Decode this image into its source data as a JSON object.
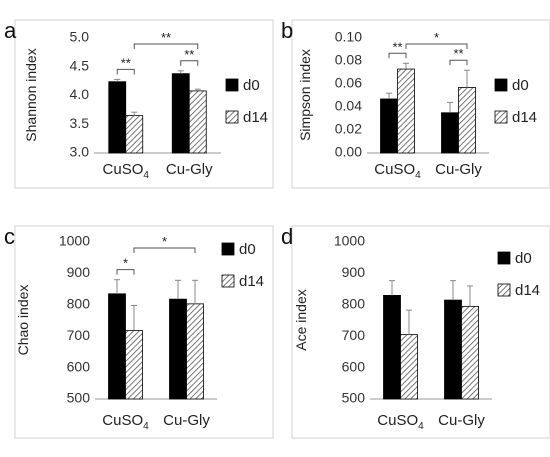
{
  "chart_data": [
    {
      "panel_label": "a",
      "type": "bar",
      "ylabel": "Shannon index",
      "ylim": [
        3.0,
        5.0
      ],
      "yticks": [
        "3.0",
        "3.5",
        "4.0",
        "4.5",
        "5.0"
      ],
      "categories": [
        {
          "label": "CuSO",
          "sub": "4"
        },
        {
          "label": "Cu-Gly",
          "sub": ""
        }
      ],
      "series": [
        {
          "name": "d0",
          "values": [
            4.24,
            4.38
          ],
          "errors": [
            0.04,
            0.05
          ]
        },
        {
          "name": "d14",
          "values": [
            3.65,
            4.08
          ],
          "errors": [
            0.06,
            0.03
          ]
        }
      ],
      "significance": [
        {
          "from": [
            0,
            0
          ],
          "to": [
            0,
            1
          ],
          "label": "**"
        },
        {
          "from": [
            1,
            0
          ],
          "to": [
            1,
            1
          ],
          "label": "**"
        },
        {
          "from": [
            0,
            1
          ],
          "to": [
            1,
            1
          ],
          "label": "**"
        }
      ]
    },
    {
      "panel_label": "b",
      "type": "bar",
      "ylabel": "Simpson index",
      "ylim": [
        0.0,
        0.1
      ],
      "yticks": [
        "0.00",
        "0.02",
        "0.04",
        "0.06",
        "0.08",
        "0.10"
      ],
      "categories": [
        {
          "label": "CuSO",
          "sub": "4"
        },
        {
          "label": "Cu-Gly",
          "sub": ""
        }
      ],
      "series": [
        {
          "name": "d0",
          "values": [
            0.047,
            0.035
          ],
          "errors": [
            0.005,
            0.009
          ]
        },
        {
          "name": "d14",
          "values": [
            0.073,
            0.057
          ],
          "errors": [
            0.005,
            0.015
          ]
        }
      ],
      "significance": [
        {
          "from": [
            0,
            0
          ],
          "to": [
            0,
            1
          ],
          "label": "**"
        },
        {
          "from": [
            1,
            0
          ],
          "to": [
            1,
            1
          ],
          "label": "**"
        },
        {
          "from": [
            0,
            1
          ],
          "to": [
            1,
            1
          ],
          "label": "*"
        }
      ]
    },
    {
      "panel_label": "c",
      "type": "bar",
      "ylabel": "Chao index",
      "ylim": [
        500,
        1000
      ],
      "yticks": [
        "500",
        "600",
        "700",
        "800",
        "900",
        "1000"
      ],
      "categories": [
        {
          "label": "CuSO",
          "sub": "4"
        },
        {
          "label": "Cu-Gly",
          "sub": ""
        }
      ],
      "series": [
        {
          "name": "d0",
          "values": [
            835,
            818
          ],
          "errors": [
            45,
            60
          ]
        },
        {
          "name": "d14",
          "values": [
            718,
            803
          ],
          "errors": [
            80,
            75
          ]
        }
      ],
      "significance": [
        {
          "from": [
            0,
            0
          ],
          "to": [
            0,
            1
          ],
          "label": "*"
        },
        {
          "from": [
            0,
            1
          ],
          "to": [
            1,
            1
          ],
          "label": "*"
        }
      ]
    },
    {
      "panel_label": "d",
      "type": "bar",
      "ylabel": "Ace index",
      "ylim": [
        500,
        1000
      ],
      "yticks": [
        "500",
        "600",
        "700",
        "800",
        "900",
        "1000"
      ],
      "categories": [
        {
          "label": "CuSO",
          "sub": "4"
        },
        {
          "label": "Cu-Gly",
          "sub": ""
        }
      ],
      "series": [
        {
          "name": "d0",
          "values": [
            830,
            815
          ],
          "errors": [
            47,
            62
          ]
        },
        {
          "name": "d14",
          "values": [
            705,
            795
          ],
          "errors": [
            78,
            65
          ]
        }
      ],
      "significance": []
    }
  ]
}
